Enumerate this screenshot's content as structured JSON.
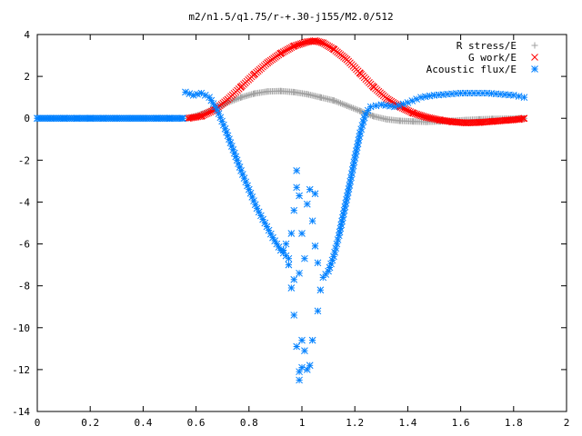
{
  "chart_data": {
    "type": "scatter",
    "title": "m2/n1.5/q1.75/r-+.30-j155/M2.0/512",
    "xlabel": "",
    "ylabel": "",
    "xlim": [
      0,
      2
    ],
    "ylim": [
      -14,
      4
    ],
    "xticks": [
      "0",
      "0.2",
      "0.4",
      "0.6",
      "0.8",
      "1",
      "1.2",
      "1.4",
      "1.6",
      "1.8",
      "2"
    ],
    "yticks": [
      "4",
      "2",
      "0",
      "-2",
      "-4",
      "-6",
      "-8",
      "-10",
      "-12",
      "-14"
    ],
    "grid": false,
    "legend_position": "top-right",
    "series": [
      {
        "name": "R stress/E",
        "marker": "+",
        "color": "#a0a0a0",
        "points": [
          [
            0.57,
            0.0
          ],
          [
            0.62,
            0.2
          ],
          [
            0.67,
            0.45
          ],
          [
            0.72,
            0.75
          ],
          [
            0.77,
            1.0
          ],
          [
            0.82,
            1.18
          ],
          [
            0.87,
            1.28
          ],
          [
            0.92,
            1.3
          ],
          [
            0.97,
            1.25
          ],
          [
            1.02,
            1.15
          ],
          [
            1.07,
            1.0
          ],
          [
            1.12,
            0.85
          ],
          [
            1.17,
            0.6
          ],
          [
            1.22,
            0.35
          ],
          [
            1.27,
            0.1
          ],
          [
            1.32,
            -0.05
          ],
          [
            1.37,
            -0.12
          ],
          [
            1.42,
            -0.15
          ],
          [
            1.47,
            -0.17
          ],
          [
            1.52,
            -0.15
          ],
          [
            1.57,
            -0.12
          ],
          [
            1.62,
            -0.08
          ],
          [
            1.67,
            -0.05
          ],
          [
            1.72,
            -0.03
          ],
          [
            1.77,
            -0.02
          ],
          [
            1.82,
            0.0
          ],
          [
            1.84,
            0.0
          ]
        ]
      },
      {
        "name": "G work/E",
        "marker": "x",
        "color": "#ff0000",
        "points": [
          [
            0.57,
            0.0
          ],
          [
            0.62,
            0.1
          ],
          [
            0.67,
            0.4
          ],
          [
            0.72,
            0.9
          ],
          [
            0.77,
            1.5
          ],
          [
            0.82,
            2.1
          ],
          [
            0.87,
            2.65
          ],
          [
            0.92,
            3.1
          ],
          [
            0.97,
            3.45
          ],
          [
            1.02,
            3.65
          ],
          [
            1.05,
            3.7
          ],
          [
            1.08,
            3.6
          ],
          [
            1.12,
            3.3
          ],
          [
            1.17,
            2.8
          ],
          [
            1.22,
            2.15
          ],
          [
            1.27,
            1.5
          ],
          [
            1.32,
            0.95
          ],
          [
            1.37,
            0.55
          ],
          [
            1.42,
            0.25
          ],
          [
            1.47,
            0.05
          ],
          [
            1.52,
            -0.08
          ],
          [
            1.57,
            -0.17
          ],
          [
            1.62,
            -0.22
          ],
          [
            1.67,
            -0.2
          ],
          [
            1.72,
            -0.15
          ],
          [
            1.77,
            -0.1
          ],
          [
            1.82,
            -0.05
          ],
          [
            1.84,
            0.0
          ]
        ]
      },
      {
        "name": "Acoustic flux/E",
        "marker": "*",
        "color": "#0080ff",
        "points": [
          [
            0.0,
            0.0
          ],
          [
            0.05,
            0.0
          ],
          [
            0.1,
            0.0
          ],
          [
            0.15,
            0.0
          ],
          [
            0.2,
            0.0
          ],
          [
            0.25,
            0.0
          ],
          [
            0.3,
            0.0
          ],
          [
            0.35,
            0.0
          ],
          [
            0.4,
            0.0
          ],
          [
            0.45,
            0.0
          ],
          [
            0.5,
            0.0
          ],
          [
            0.55,
            0.0
          ],
          [
            0.56,
            1.25
          ],
          [
            0.59,
            1.1
          ],
          [
            0.62,
            1.2
          ],
          [
            0.65,
            1.0
          ],
          [
            0.68,
            0.4
          ],
          [
            0.71,
            -0.5
          ],
          [
            0.74,
            -1.5
          ],
          [
            0.77,
            -2.5
          ],
          [
            0.8,
            -3.4
          ],
          [
            0.83,
            -4.3
          ],
          [
            0.86,
            -5.0
          ],
          [
            0.89,
            -5.7
          ],
          [
            0.92,
            -6.3
          ],
          [
            0.95,
            -6.7
          ],
          [
            0.96,
            -8.1
          ],
          [
            0.97,
            -9.4
          ],
          [
            0.98,
            -10.9
          ],
          [
            0.99,
            -12.1
          ],
          [
            0.99,
            -12.5
          ],
          [
            1.0,
            -11.9
          ],
          [
            1.01,
            -11.1
          ],
          [
            1.02,
            -12.0
          ],
          [
            1.03,
            -11.8
          ],
          [
            1.04,
            -10.6
          ],
          [
            1.06,
            -9.2
          ],
          [
            1.07,
            -8.2
          ],
          [
            1.08,
            -7.6
          ],
          [
            1.1,
            -7.3
          ],
          [
            1.12,
            -6.6
          ],
          [
            1.14,
            -5.6
          ],
          [
            1.16,
            -4.4
          ],
          [
            1.18,
            -3.2
          ],
          [
            1.2,
            -1.9
          ],
          [
            1.22,
            -0.7
          ],
          [
            1.24,
            0.2
          ],
          [
            1.26,
            0.55
          ],
          [
            1.3,
            0.65
          ],
          [
            1.35,
            0.55
          ],
          [
            1.4,
            0.75
          ],
          [
            1.45,
            1.0
          ],
          [
            1.5,
            1.1
          ],
          [
            1.55,
            1.15
          ],
          [
            1.6,
            1.2
          ],
          [
            1.65,
            1.2
          ],
          [
            1.7,
            1.2
          ],
          [
            1.75,
            1.15
          ],
          [
            1.8,
            1.1
          ],
          [
            1.84,
            1.0
          ],
          [
            0.93,
            -6.3
          ],
          [
            0.94,
            -6.0
          ],
          [
            0.95,
            -7.0
          ],
          [
            0.96,
            -5.5
          ],
          [
            0.97,
            -4.4
          ],
          [
            0.98,
            -3.3
          ],
          [
            0.98,
            -2.5
          ],
          [
            0.99,
            -3.7
          ],
          [
            1.0,
            -5.5
          ],
          [
            1.01,
            -6.7
          ],
          [
            1.02,
            -4.1
          ],
          [
            1.03,
            -3.4
          ],
          [
            1.04,
            -4.9
          ],
          [
            1.05,
            -6.1
          ],
          [
            1.06,
            -6.9
          ],
          [
            1.05,
            -3.6
          ],
          [
            0.99,
            -7.4
          ],
          [
            1.0,
            -10.6
          ],
          [
            0.97,
            -7.7
          ]
        ]
      }
    ]
  }
}
